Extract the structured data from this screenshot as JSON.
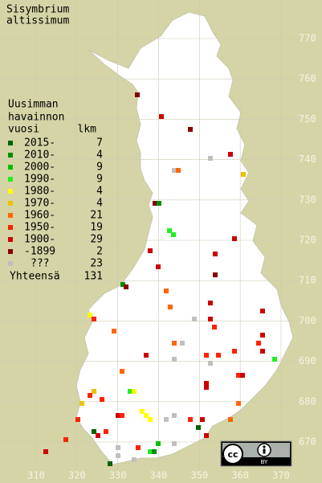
{
  "title": [
    "Sisymbrium",
    "altissimum"
  ],
  "legend": {
    "header": [
      "Uusimman",
      "havainnon",
      "vuosi"
    ],
    "count_header": "lkm",
    "items": [
      {
        "label": "2015-",
        "count": 7,
        "color": "#006400"
      },
      {
        "label": "2010-",
        "count": 4,
        "color": "#008c00"
      },
      {
        "label": "2000-",
        "count": 9,
        "color": "#00c000"
      },
      {
        "label": "1990-",
        "count": 9,
        "color": "#22ee22"
      },
      {
        "label": "1980-",
        "count": 4,
        "color": "#ffff00"
      },
      {
        "label": "1970-",
        "count": 4,
        "color": "#f0c000"
      },
      {
        "label": "1960-",
        "count": 21,
        "color": "#ff6600"
      },
      {
        "label": "1950-",
        "count": 19,
        "color": "#ff2200"
      },
      {
        "label": "1900-",
        "count": 29,
        "color": "#cc0000"
      },
      {
        "label": "-1899",
        "count": 2,
        "color": "#880000"
      },
      {
        "label": "???",
        "count": 23,
        "color": "#c0c0c0"
      }
    ],
    "total_label": "Yhteensä",
    "total": 131
  },
  "x_labels": [
    310,
    320,
    330,
    340,
    350,
    360,
    370
  ],
  "y_labels": [
    670,
    680,
    690,
    700,
    710,
    720,
    730,
    740,
    750,
    760,
    770
  ],
  "license": {
    "cc": "cc",
    "by": "BY"
  }
}
